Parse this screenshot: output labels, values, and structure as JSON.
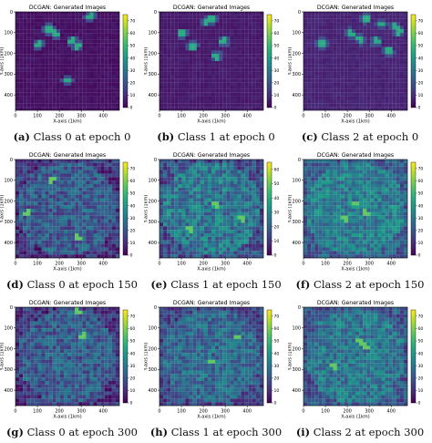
{
  "colormap": "viridis",
  "colors": {
    "background": "#ffffff",
    "axis": "#000000"
  },
  "panels": [
    {
      "letter": "(a)",
      "caption": "Class 0 at epoch 0",
      "chart_data": {
        "type": "heatmap",
        "title": "DCGAN: Generated Images",
        "xlabel": "X-axis (1km)",
        "ylabel": "Y-axis (1km)",
        "xticks": [
          0,
          100,
          200,
          300,
          400
        ],
        "yticks": [
          0,
          100,
          200,
          300,
          400
        ],
        "colorbar_ticks": [
          0,
          10,
          20,
          30,
          40,
          50,
          60,
          70
        ],
        "clim": [
          0,
          75
        ],
        "texture": "sparse",
        "base_value": 2,
        "hotspots": [
          [
            0.22,
            0.33
          ],
          [
            0.32,
            0.18
          ],
          [
            0.38,
            0.22
          ],
          [
            0.55,
            0.3
          ],
          [
            0.6,
            0.35
          ],
          [
            0.72,
            0.05
          ],
          [
            0.5,
            0.7
          ]
        ]
      }
    },
    {
      "letter": "(b)",
      "caption": "Class 1 at epoch 0",
      "chart_data": {
        "type": "heatmap",
        "title": "DCGAN: Generated Images",
        "xlabel": "X-axis (1km)",
        "ylabel": "Y-axis (1km)",
        "xticks": [
          0,
          100,
          200,
          300,
          400
        ],
        "yticks": [
          0,
          100,
          200,
          300,
          400
        ],
        "colorbar_ticks": [
          0,
          10,
          20,
          30,
          40,
          50,
          60,
          70
        ],
        "clim": [
          0,
          75
        ],
        "texture": "sparse",
        "base_value": 4,
        "hotspots": [
          [
            0.45,
            0.1
          ],
          [
            0.5,
            0.08
          ],
          [
            0.32,
            0.35
          ],
          [
            0.22,
            0.22
          ],
          [
            0.62,
            0.3
          ],
          [
            0.55,
            0.45
          ]
        ]
      }
    },
    {
      "letter": "(c)",
      "caption": "Class 2 at epoch 0",
      "chart_data": {
        "type": "heatmap",
        "title": "DCGAN: Generated Images",
        "xlabel": "X-axis (1km)",
        "ylabel": "Y-axis (1km)",
        "xticks": [
          0,
          100,
          200,
          300,
          400
        ],
        "yticks": [
          0,
          100,
          200,
          300,
          400
        ],
        "colorbar_ticks": [
          0,
          10,
          20,
          30,
          40,
          50,
          60,
          70
        ],
        "clim": [
          0,
          75
        ],
        "texture": "sparse",
        "base_value": 6,
        "hotspots": [
          [
            0.6,
            0.07
          ],
          [
            0.75,
            0.12
          ],
          [
            0.88,
            0.15
          ],
          [
            0.92,
            0.2
          ],
          [
            0.45,
            0.22
          ],
          [
            0.7,
            0.3
          ],
          [
            0.55,
            0.28
          ],
          [
            0.18,
            0.32
          ],
          [
            0.82,
            0.4
          ]
        ]
      }
    },
    {
      "letter": "(d)",
      "caption": "Class 0 at epoch 150",
      "chart_data": {
        "type": "heatmap",
        "title": "DCGAN: Generated Images",
        "xlabel": "X-axis (1km)",
        "ylabel": "Y-axis (1km)",
        "xticks": [
          0,
          100,
          200,
          300,
          400
        ],
        "yticks": [
          0,
          100,
          200,
          300,
          400
        ],
        "colorbar_ticks": [
          0,
          10,
          20,
          30,
          40,
          50,
          60,
          70
        ],
        "clim": [
          0,
          75
        ],
        "texture": "dense",
        "base_value": 18,
        "hotspots": [
          [
            0.12,
            0.55
          ],
          [
            0.6,
            0.8
          ],
          [
            0.35,
            0.2
          ]
        ]
      }
    },
    {
      "letter": "(e)",
      "caption": "Class 1 at epoch 150",
      "chart_data": {
        "type": "heatmap",
        "title": "DCGAN: Generated Images",
        "xlabel": "X-axis (1km)",
        "ylabel": "Y-axis (1km)",
        "xticks": [
          0,
          100,
          200,
          300,
          400
        ],
        "yticks": [
          0,
          100,
          200,
          300,
          400
        ],
        "colorbar_ticks": [
          0,
          10,
          20,
          30,
          40,
          50,
          60
        ],
        "clim": [
          0,
          65
        ],
        "texture": "dense",
        "base_value": 22,
        "hotspots": [
          [
            0.8,
            0.6
          ],
          [
            0.55,
            0.45
          ],
          [
            0.3,
            0.7
          ]
        ]
      }
    },
    {
      "letter": "(f)",
      "caption": "Class 2 at epoch 150",
      "chart_data": {
        "type": "heatmap",
        "title": "DCGAN: Generated Images",
        "xlabel": "X-axis (1km)",
        "ylabel": "Y-axis (1km)",
        "xticks": [
          0,
          100,
          200,
          300,
          400
        ],
        "yticks": [
          0,
          100,
          200,
          300,
          400
        ],
        "colorbar_ticks": [
          0,
          10,
          20,
          30,
          40,
          50,
          60,
          70
        ],
        "clim": [
          0,
          75
        ],
        "texture": "dense",
        "base_value": 28,
        "hotspots": [
          [
            0.5,
            0.45
          ],
          [
            0.6,
            0.55
          ],
          [
            0.4,
            0.6
          ]
        ]
      }
    },
    {
      "letter": "(g)",
      "caption": "Class 0 at epoch 300",
      "chart_data": {
        "type": "heatmap",
        "title": "DCGAN: Generated Images",
        "xlabel": "X-axis (1km)",
        "ylabel": "Y-axis (1km)",
        "xticks": [
          0,
          100,
          200,
          300,
          400
        ],
        "yticks": [
          0,
          100,
          200,
          300,
          400
        ],
        "colorbar_ticks": [
          0,
          10,
          20,
          30,
          40,
          50,
          60,
          70
        ],
        "clim": [
          0,
          75
        ],
        "texture": "dense",
        "base_value": 18,
        "hotspots": [
          [
            0.65,
            0.3
          ],
          [
            0.6,
            0.05
          ]
        ]
      }
    },
    {
      "letter": "(h)",
      "caption": "Class 1 at epoch 300",
      "chart_data": {
        "type": "heatmap",
        "title": "DCGAN: Generated Images",
        "xlabel": "X-axis (1km)",
        "ylabel": "Y-axis (1km)",
        "xticks": [
          0,
          100,
          200,
          300,
          400
        ],
        "yticks": [
          0,
          100,
          200,
          300,
          400
        ],
        "colorbar_ticks": [
          0,
          10,
          20,
          30,
          40,
          50,
          60,
          70
        ],
        "clim": [
          0,
          75
        ],
        "texture": "dense",
        "base_value": 22,
        "hotspots": [
          [
            0.75,
            0.3
          ],
          [
            0.5,
            0.55
          ]
        ]
      }
    },
    {
      "letter": "(i)",
      "caption": "Class 2 at epoch 300",
      "chart_data": {
        "type": "heatmap",
        "title": "DCGAN: Generated Images",
        "xlabel": "X-axis (1km)",
        "ylabel": "Y-axis (1km)",
        "xticks": [
          0,
          100,
          200,
          300,
          400
        ],
        "yticks": [
          0,
          100,
          200,
          300,
          400
        ],
        "colorbar_ticks": [
          0,
          10,
          20,
          30,
          40,
          50,
          60,
          70
        ],
        "clim": [
          0,
          75
        ],
        "texture": "dense",
        "base_value": 26,
        "hotspots": [
          [
            0.6,
            0.4
          ],
          [
            0.55,
            0.35
          ],
          [
            0.3,
            0.6
          ]
        ]
      }
    }
  ]
}
